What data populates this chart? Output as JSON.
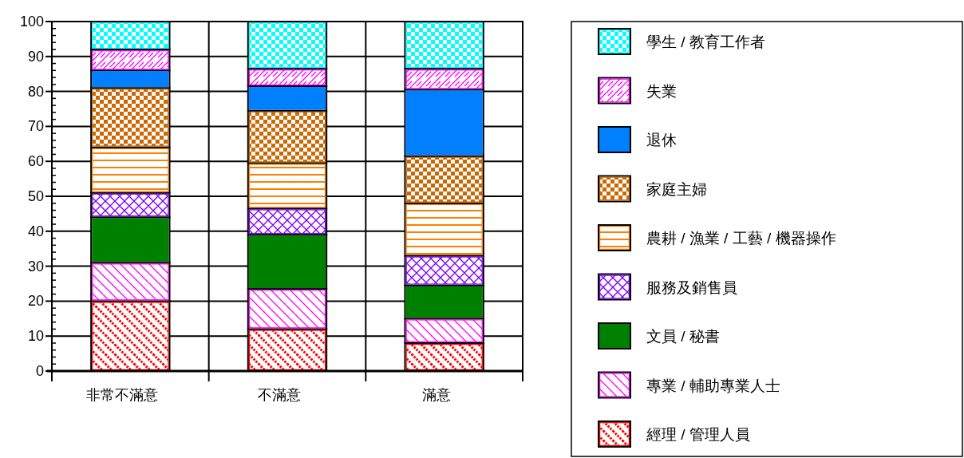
{
  "chart_data": {
    "type": "bar",
    "stacked": true,
    "categories": [
      "非常不滿意",
      "不滿意",
      "滿意"
    ],
    "series": [
      {
        "name": "經理 / 管理人員",
        "color": "#ff0000",
        "values": [
          20,
          12,
          8
        ]
      },
      {
        "name": "專業 / 輔助專業人士",
        "color": "#ff00ff",
        "values": [
          11,
          11.5,
          7
        ]
      },
      {
        "name": "文員 / 秘書",
        "color": "#008000",
        "values": [
          13,
          15.5,
          9.5
        ]
      },
      {
        "name": "服務及銷售員",
        "color": "#8000ff",
        "values": [
          7,
          7.5,
          8.5
        ]
      },
      {
        "name": "農耕 / 漁業 / 工藝 / 機器操作",
        "color": "#ff8000",
        "values": [
          13,
          13,
          15
        ]
      },
      {
        "name": "家庭主婦",
        "color": "#cc6600",
        "values": [
          17,
          15,
          13.5
        ]
      },
      {
        "name": "退休",
        "color": "#0080ff",
        "values": [
          5,
          7,
          19
        ]
      },
      {
        "name": "失業",
        "color": "#ff00ff",
        "values": [
          6,
          5,
          6
        ]
      },
      {
        "name": "學生 / 教育工作者",
        "color": "#00ffff",
        "values": [
          8,
          13.5,
          13.5
        ]
      }
    ],
    "ylim": [
      0,
      100
    ],
    "yticks": [
      0,
      10,
      20,
      30,
      40,
      50,
      60,
      70,
      80,
      90,
      100
    ],
    "grid": true,
    "legend": "right"
  }
}
